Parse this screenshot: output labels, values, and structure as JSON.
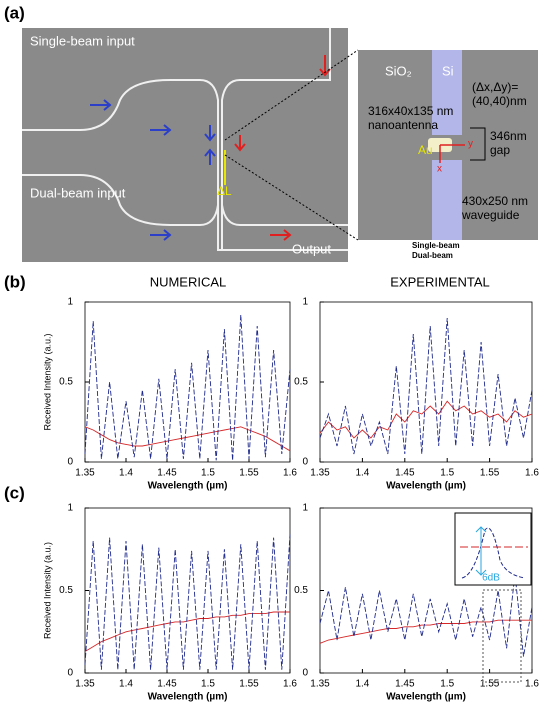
{
  "panel_labels": [
    "(a)",
    "(b)",
    "(c)"
  ],
  "column_titles": [
    "NUMERICAL",
    "EXPERIMENTAL"
  ],
  "panel_a": {
    "single_input": "Single-beam input",
    "dual_input": "Dual-beam input",
    "output": "Output",
    "delta_l": "ΔL",
    "inset": {
      "sio2": "SiO₂",
      "si": "Si",
      "offset": "(Δx,Δy)=",
      "offset_value": "(40,40)nm",
      "antenna_size": "316x40x135 nm",
      "antenna": "nanoantenna",
      "gap_size": "346nm",
      "gap": "gap",
      "au": "Au",
      "y": "y",
      "x": "x",
      "wg_size": "430x250 nm",
      "wg": "waveguide"
    }
  },
  "chart_data": [
    {
      "type": "line",
      "xlabel": "Wavelength (µm)",
      "ylabel": "Received Intensity (a.u.)",
      "x": [
        1.35,
        1.36,
        1.37,
        1.38,
        1.39,
        1.4,
        1.41,
        1.42,
        1.43,
        1.44,
        1.45,
        1.46,
        1.47,
        1.48,
        1.49,
        1.5,
        1.51,
        1.52,
        1.53,
        1.54,
        1.55,
        1.56,
        1.57,
        1.58,
        1.59,
        1.6
      ],
      "series": [
        {
          "name": "Single-beam",
          "color": "#d62728",
          "dashed": false,
          "values": [
            0.22,
            0.2,
            0.17,
            0.14,
            0.12,
            0.11,
            0.1,
            0.1,
            0.11,
            0.12,
            0.13,
            0.14,
            0.15,
            0.16,
            0.17,
            0.18,
            0.19,
            0.2,
            0.21,
            0.22,
            0.2,
            0.18,
            0.16,
            0.13,
            0.1,
            0.07
          ]
        },
        {
          "name": "Dual-beam",
          "color": "#1f2a8c",
          "dashed": true,
          "values": [
            0.05,
            0.88,
            0.02,
            0.5,
            0.02,
            0.38,
            0.03,
            0.45,
            0.02,
            0.52,
            0.02,
            0.58,
            0.02,
            0.62,
            0.02,
            0.7,
            0.01,
            0.83,
            0.01,
            0.92,
            0.02,
            0.85,
            0.03,
            0.7,
            0.05,
            0.58
          ]
        }
      ],
      "xlim": [
        1.35,
        1.6
      ],
      "ylim": [
        0,
        1
      ],
      "xticks": [
        1.35,
        1.4,
        1.45,
        1.5,
        1.55,
        1.6
      ],
      "yticks": [
        0,
        0.5,
        1
      ]
    },
    {
      "type": "line",
      "xlabel": "Wavelength (µm)",
      "x": [
        1.35,
        1.36,
        1.37,
        1.38,
        1.39,
        1.4,
        1.41,
        1.42,
        1.43,
        1.44,
        1.45,
        1.46,
        1.47,
        1.48,
        1.49,
        1.5,
        1.51,
        1.52,
        1.53,
        1.54,
        1.55,
        1.56,
        1.57,
        1.58,
        1.59,
        1.6
      ],
      "series": [
        {
          "color": "#d62728",
          "dashed": false,
          "values": [
            0.18,
            0.25,
            0.2,
            0.22,
            0.15,
            0.2,
            0.15,
            0.22,
            0.2,
            0.3,
            0.25,
            0.32,
            0.3,
            0.35,
            0.3,
            0.38,
            0.32,
            0.35,
            0.3,
            0.32,
            0.28,
            0.3,
            0.25,
            0.32,
            0.28,
            0.3
          ]
        },
        {
          "color": "#1f2a8c",
          "dashed": true,
          "values": [
            0.15,
            0.3,
            0.1,
            0.35,
            0.05,
            0.3,
            0.1,
            0.25,
            0.05,
            0.6,
            0.05,
            0.8,
            0.05,
            0.85,
            0.1,
            0.9,
            0.1,
            0.7,
            0.1,
            0.75,
            0.1,
            0.55,
            0.1,
            0.4,
            0.15,
            0.45
          ]
        }
      ],
      "xlim": [
        1.35,
        1.6
      ],
      "ylim": [
        0,
        1
      ],
      "xticks": [
        1.35,
        1.4,
        1.45,
        1.5,
        1.55,
        1.6
      ],
      "yticks": [
        0,
        0.5,
        1
      ]
    },
    {
      "type": "line",
      "xlabel": "Wavelength (µm)",
      "ylabel": "Received Intensity (a.u.)",
      "x": [
        1.35,
        1.36,
        1.37,
        1.38,
        1.39,
        1.4,
        1.41,
        1.42,
        1.43,
        1.44,
        1.45,
        1.46,
        1.47,
        1.48,
        1.49,
        1.5,
        1.51,
        1.52,
        1.53,
        1.54,
        1.55,
        1.56,
        1.57,
        1.58,
        1.59,
        1.6
      ],
      "series": [
        {
          "color": "#d62728",
          "dashed": false,
          "values": [
            0.13,
            0.16,
            0.19,
            0.21,
            0.23,
            0.25,
            0.26,
            0.27,
            0.28,
            0.29,
            0.3,
            0.31,
            0.31,
            0.32,
            0.33,
            0.33,
            0.34,
            0.34,
            0.35,
            0.35,
            0.36,
            0.36,
            0.36,
            0.37,
            0.37,
            0.37
          ]
        },
        {
          "color": "#1f2a8c",
          "dashed": true,
          "values": [
            0.05,
            0.8,
            0.02,
            0.82,
            0.02,
            0.8,
            0.02,
            0.78,
            0.02,
            0.76,
            0.02,
            0.75,
            0.02,
            0.74,
            0.02,
            0.74,
            0.02,
            0.75,
            0.02,
            0.78,
            0.02,
            0.8,
            0.02,
            0.82,
            0.02,
            0.84
          ]
        }
      ],
      "xlim": [
        1.35,
        1.6
      ],
      "ylim": [
        0,
        1
      ],
      "xticks": [
        1.35,
        1.4,
        1.45,
        1.5,
        1.55,
        1.6
      ],
      "yticks": [
        0,
        0.5,
        1
      ]
    },
    {
      "type": "line",
      "xlabel": "Wavelength (µm)",
      "annotation": "6dB",
      "x": [
        1.35,
        1.36,
        1.37,
        1.38,
        1.39,
        1.4,
        1.41,
        1.42,
        1.43,
        1.44,
        1.45,
        1.46,
        1.47,
        1.48,
        1.49,
        1.5,
        1.51,
        1.52,
        1.53,
        1.54,
        1.55,
        1.56,
        1.57,
        1.58,
        1.59,
        1.6
      ],
      "series": [
        {
          "color": "#d62728",
          "dashed": false,
          "values": [
            0.18,
            0.2,
            0.21,
            0.22,
            0.23,
            0.24,
            0.25,
            0.26,
            0.27,
            0.27,
            0.28,
            0.28,
            0.29,
            0.29,
            0.3,
            0.3,
            0.3,
            0.3,
            0.31,
            0.31,
            0.31,
            0.32,
            0.32,
            0.32,
            0.32,
            0.32
          ]
        },
        {
          "color": "#1f2a8c",
          "dashed": true,
          "values": [
            0.3,
            0.5,
            0.2,
            0.52,
            0.22,
            0.48,
            0.2,
            0.5,
            0.25,
            0.45,
            0.2,
            0.48,
            0.22,
            0.45,
            0.25,
            0.42,
            0.2,
            0.45,
            0.22,
            0.4,
            0.2,
            0.5,
            0.15,
            0.6,
            0.1,
            0.4
          ]
        }
      ],
      "xlim": [
        1.35,
        1.6
      ],
      "ylim": [
        0,
        1
      ],
      "xticks": [
        1.35,
        1.4,
        1.45,
        1.5,
        1.55,
        1.6
      ],
      "yticks": [
        0,
        0.5,
        1
      ]
    }
  ]
}
